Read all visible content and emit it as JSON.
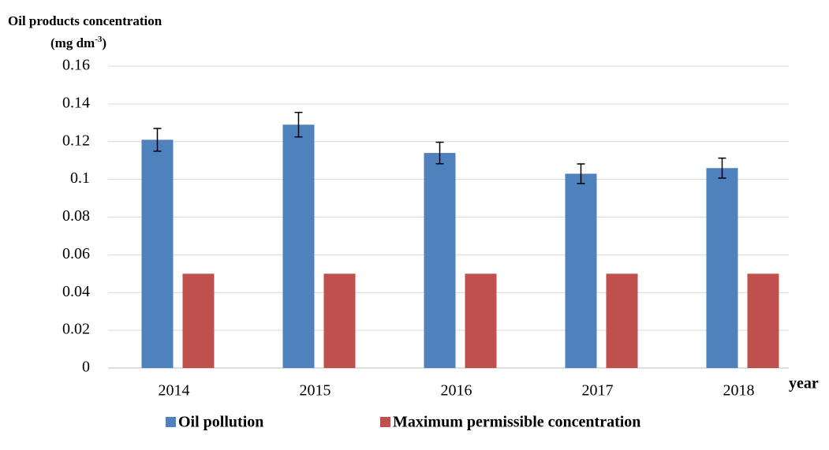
{
  "chart_data": {
    "type": "bar",
    "y_label": "Oil products concentration",
    "y_unit": {
      "text": "(mg dm",
      "sup": "-3",
      "end": ")"
    },
    "x_label": "year",
    "categories": [
      "2014",
      "2015",
      "2016",
      "2017",
      "2018"
    ],
    "series": [
      {
        "name": "Oil pollution",
        "color": "#4f81bd",
        "values": [
          0.121,
          0.129,
          0.114,
          0.103,
          0.106
        ],
        "errors": [
          0.006,
          0.0065,
          0.0057,
          0.0052,
          0.0053
        ]
      },
      {
        "name": "Maximum permissible concentration",
        "color": "#c0504d",
        "values": [
          0.05,
          0.05,
          0.05,
          0.05,
          0.05
        ]
      }
    ],
    "ylim": [
      0,
      0.16
    ],
    "yticks": [
      0,
      0.02,
      0.04,
      0.06,
      0.08,
      0.1,
      0.12,
      0.14,
      0.16
    ],
    "grid": true,
    "legend": "bottom"
  }
}
